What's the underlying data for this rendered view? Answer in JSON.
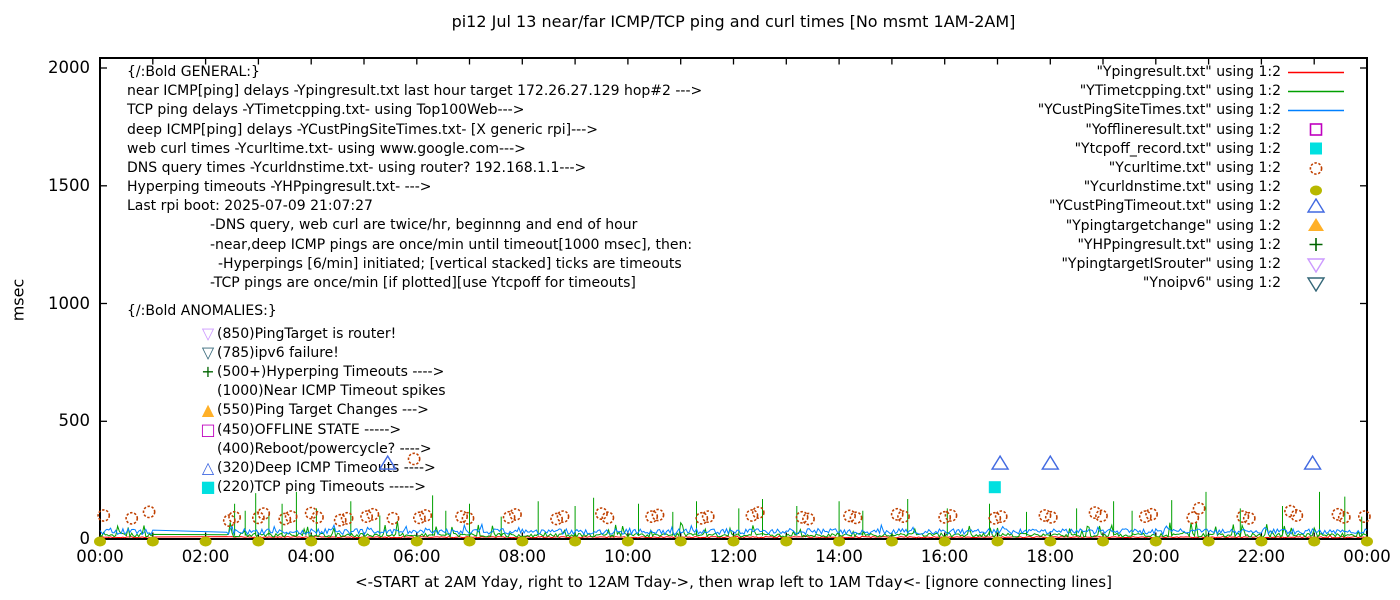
{
  "title": "pi12 Jul 13  near/far ICMP/TCP ping and curl times [No msmt 1AM-2AM]",
  "axes": {
    "ylabel": "msec",
    "xlabel": "<-START at 2AM Yday, right to 12AM Tday->, then wrap left to 1AM Tday<- [ignore connecting lines]",
    "y_tick_labels": [
      "0",
      "500",
      "1000",
      "1500",
      "2000"
    ],
    "x_tick_labels": [
      "00:00",
      "02:00",
      "04:00",
      "06:00",
      "08:00",
      "10:00",
      "12:00",
      "14:00",
      "16:00",
      "18:00",
      "20:00",
      "22:00",
      "00:00"
    ]
  },
  "general_block": {
    "lines": [
      {
        "text": "{/:Bold GENERAL:}",
        "indent": 0
      },
      {
        "text": "near ICMP[ping] delays -Ypingresult.txt last hour target 172.26.27.129 hop#2 --->",
        "indent": 0
      },
      {
        "text": "TCP ping delays -YTimetcpping.txt- using Top100Web--->",
        "indent": 0
      },
      {
        "text": "deep ICMP[ping] delays -YCustPingSiteTimes.txt- [X generic rpi]--->",
        "indent": 0
      },
      {
        "text": "web curl times -Ycurltime.txt- using www.google.com--->",
        "indent": 0
      },
      {
        "text": "DNS query times -Ycurldnstime.txt- using router? 192.168.1.1--->",
        "indent": 0
      },
      {
        "text": "Hyperping timeouts -YHPpingresult.txt- --->",
        "indent": 0
      },
      {
        "text": "Last rpi boot: 2025-07-09 21:07:27",
        "indent": 0
      },
      {
        "text": "-DNS query, web curl are twice/hr, beginnng and end of hour",
        "indent": 1
      },
      {
        "text": "-near,deep ICMP pings are once/min until timeout[1000 msec], then:",
        "indent": 1
      },
      {
        "text": "-Hyperpings [6/min] initiated; [vertical stacked] ticks are timeouts",
        "indent": 2
      },
      {
        "text": "-TCP pings are once/min [if plotted][use Ytcpoff for timeouts]",
        "indent": 1
      }
    ]
  },
  "anomalies_block": {
    "header": "{/:Bold ANOMALIES:}",
    "items": [
      {
        "marker": "triangle-down-open",
        "color": "#cc99ff",
        "text": "(850)PingTarget is router!"
      },
      {
        "marker": "triangle-down-open",
        "color": "#336677",
        "text": "(785)ipv6 failure!"
      },
      {
        "marker": "plus",
        "color": "#006400",
        "text": "(500+)Hyperping Timeouts ---->"
      },
      {
        "marker": "none",
        "color": "#000000",
        "text": "(1000)Near ICMP Timeout spikes"
      },
      {
        "marker": "triangle-up-filled",
        "color": "#ffb028",
        "text": "(550)Ping Target Changes --->"
      },
      {
        "marker": "square-open",
        "color": "#bf00bf",
        "text": "(450)OFFLINE STATE ----->"
      },
      {
        "marker": "none",
        "color": "#000000",
        "text": "(400)Reboot/powercycle? ---->"
      },
      {
        "marker": "triangle-up-open",
        "color": "#4169e1",
        "text": "(320)Deep ICMP Timeouts ---->"
      },
      {
        "marker": "square-filled",
        "color": "#00e0e0",
        "text": "(220)TCP ping Timeouts ----->"
      }
    ]
  },
  "legend": [
    {
      "label": "\"Ypingresult.txt\" using 1:2",
      "marker": "line",
      "color": "#ff0000"
    },
    {
      "label": "\"YTimetcpping.txt\" using 1:2",
      "marker": "line",
      "color": "#00a000"
    },
    {
      "label": "\"YCustPingSiteTimes.txt\" using 1:2",
      "marker": "line",
      "color": "#0080ff"
    },
    {
      "label": "\"Yofflineresult.txt\" using 1:2",
      "marker": "square-open",
      "color": "#bf00bf"
    },
    {
      "label": "\"Ytcpoff_record.txt\" using 1:2",
      "marker": "square-filled",
      "color": "#00e0e0"
    },
    {
      "label": "\"Ycurltime.txt\" using 1:2",
      "marker": "circle-open",
      "color": "#c04000"
    },
    {
      "label": "\"Ycurldnstime.txt\" using 1:2",
      "marker": "circle-filled",
      "color": "#b8b800"
    },
    {
      "label": "\"YCustPingTimeout.txt\" using 1:2",
      "marker": "triangle-up-open",
      "color": "#4169e1"
    },
    {
      "label": "\"Ypingtargetchange\" using 1:2",
      "marker": "triangle-up-filled",
      "color": "#ffb028"
    },
    {
      "label": "\"YHPpingresult.txt\" using 1:2",
      "marker": "plus",
      "color": "#006400"
    },
    {
      "label": "\"YpingtargetISrouter\" using 1:2",
      "marker": "triangle-down-open",
      "color": "#cc99ff"
    },
    {
      "label": "\"Ynoipv6\" using 1:2",
      "marker": "triangle-down-open",
      "color": "#336677"
    }
  ],
  "chart_data": {
    "type": "line",
    "title": "pi12 Jul 13  near/far ICMP/TCP ping and curl times [No msmt 1AM-2AM]",
    "xlabel": "<-START at 2AM Yday, right to 12AM Tday->, then wrap left to 1AM Tday<- [ignore connecting lines]",
    "ylabel": "msec",
    "xlim_hours": [
      0,
      24
    ],
    "ylim": [
      0,
      2000
    ],
    "y_ticks": [
      0,
      500,
      1000,
      1500,
      2000
    ],
    "x_tick_hours": [
      0,
      2,
      4,
      6,
      8,
      10,
      12,
      14,
      16,
      18,
      20,
      22,
      24
    ],
    "grid": false,
    "legend_position": "top-right",
    "no_measurement_gap_hours": [
      1.0,
      2.4
    ],
    "line_series": [
      {
        "name": "Ypingresult.txt",
        "color": "#ff0000",
        "base": 7,
        "noise": 5,
        "burst_p": 0.02,
        "burst_amp": 8,
        "seed": 7,
        "spikes": []
      },
      {
        "name": "YTimetcpping.txt",
        "color": "#00a000",
        "base": 14,
        "noise": 16,
        "burst_p": 0.12,
        "burst_amp": 55,
        "seed": 13,
        "spikes": [
          [
            2.55,
            150
          ],
          [
            2.75,
            120
          ],
          [
            2.95,
            195
          ],
          [
            3.2,
            110
          ],
          [
            3.45,
            150
          ],
          [
            3.72,
            200
          ],
          [
            4.1,
            130
          ],
          [
            4.75,
            160
          ],
          [
            5.3,
            100
          ],
          [
            6.3,
            185
          ],
          [
            6.55,
            120
          ],
          [
            7.0,
            150
          ],
          [
            7.6,
            95
          ],
          [
            8.3,
            160
          ],
          [
            9.0,
            140
          ],
          [
            9.35,
            175
          ],
          [
            10.2,
            150
          ],
          [
            10.85,
            115
          ],
          [
            11.3,
            160
          ],
          [
            12.1,
            130
          ],
          [
            12.55,
            170
          ],
          [
            13.2,
            140
          ],
          [
            14.0,
            160
          ],
          [
            14.45,
            120
          ],
          [
            15.3,
            170
          ],
          [
            16.05,
            130
          ],
          [
            16.85,
            150
          ],
          [
            17.55,
            115
          ],
          [
            18.5,
            130
          ],
          [
            19.2,
            160
          ],
          [
            19.55,
            120
          ],
          [
            20.3,
            165
          ],
          [
            20.95,
            200
          ],
          [
            21.6,
            130
          ],
          [
            22.4,
            140
          ],
          [
            23.1,
            200
          ],
          [
            23.58,
            180
          ],
          [
            23.9,
            95
          ]
        ]
      },
      {
        "name": "YCustPingSiteTimes.txt",
        "color": "#0080ff",
        "base": 28,
        "noise": 24,
        "burst_p": 0.08,
        "burst_amp": 22,
        "seed": 5,
        "spikes": []
      }
    ],
    "point_series": [
      {
        "name": "Yofflineresult.txt",
        "marker": "square-open",
        "color": "#bf00bf",
        "points": []
      },
      {
        "name": "Ytcpoff_record.txt",
        "marker": "square-filled",
        "color": "#00e0e0",
        "points": [
          [
            16.95,
            220
          ]
        ]
      },
      {
        "name": "Ycurltime.txt",
        "marker": "circle-open",
        "color": "#c04000",
        "points": [
          [
            0.07,
            100
          ],
          [
            0.6,
            88
          ],
          [
            0.93,
            115
          ],
          [
            2.45,
            78
          ],
          [
            2.55,
            92
          ],
          [
            3.0,
            90
          ],
          [
            3.1,
            108
          ],
          [
            3.5,
            85
          ],
          [
            3.62,
            95
          ],
          [
            4.0,
            110
          ],
          [
            4.12,
            92
          ],
          [
            4.55,
            80
          ],
          [
            4.68,
            88
          ],
          [
            5.05,
            95
          ],
          [
            5.17,
            105
          ],
          [
            5.55,
            88
          ],
          [
            5.95,
            340
          ],
          [
            6.05,
            90
          ],
          [
            6.17,
            100
          ],
          [
            6.85,
            95
          ],
          [
            6.97,
            88
          ],
          [
            7.75,
            92
          ],
          [
            7.87,
            104
          ],
          [
            8.65,
            85
          ],
          [
            8.77,
            95
          ],
          [
            9.5,
            108
          ],
          [
            9.62,
            90
          ],
          [
            10.45,
            95
          ],
          [
            10.57,
            102
          ],
          [
            11.4,
            88
          ],
          [
            11.52,
            95
          ],
          [
            12.35,
            100
          ],
          [
            12.47,
            112
          ],
          [
            13.3,
            92
          ],
          [
            13.42,
            85
          ],
          [
            14.2,
            98
          ],
          [
            14.32,
            90
          ],
          [
            15.1,
            105
          ],
          [
            15.22,
            95
          ],
          [
            16.0,
            92
          ],
          [
            16.12,
            100
          ],
          [
            16.95,
            88
          ],
          [
            17.07,
            95
          ],
          [
            17.9,
            100
          ],
          [
            18.02,
            92
          ],
          [
            18.85,
            112
          ],
          [
            18.97,
            98
          ],
          [
            19.8,
            95
          ],
          [
            19.92,
            105
          ],
          [
            20.7,
            90
          ],
          [
            20.82,
            130
          ],
          [
            21.65,
            95
          ],
          [
            21.77,
            88
          ],
          [
            22.55,
            118
          ],
          [
            22.67,
            100
          ],
          [
            23.45,
            105
          ],
          [
            23.57,
            92
          ],
          [
            23.95,
            95
          ]
        ]
      },
      {
        "name": "Ycurldnstime.txt",
        "marker": "circle-filled",
        "color": "#b8b800",
        "points": [
          [
            0,
            2
          ],
          [
            1,
            2
          ],
          [
            2,
            2
          ],
          [
            3,
            2
          ],
          [
            4,
            2
          ],
          [
            5,
            2
          ],
          [
            6,
            2
          ],
          [
            7,
            2
          ],
          [
            8,
            2
          ],
          [
            9,
            2
          ],
          [
            10,
            2
          ],
          [
            11,
            2
          ],
          [
            12,
            2
          ],
          [
            13,
            2
          ],
          [
            14,
            2
          ],
          [
            15,
            2
          ],
          [
            16,
            2
          ],
          [
            17,
            2
          ],
          [
            18,
            2
          ],
          [
            19,
            2
          ],
          [
            20,
            2
          ],
          [
            21,
            2
          ],
          [
            22,
            2
          ],
          [
            23,
            2
          ],
          [
            24,
            2
          ]
        ]
      },
      {
        "name": "YCustPingTimeout.txt",
        "marker": "triangle-up-open",
        "color": "#4169e1",
        "points": [
          [
            5.45,
            320
          ],
          [
            17.05,
            320
          ],
          [
            18.0,
            320
          ],
          [
            22.97,
            320
          ]
        ]
      },
      {
        "name": "Ypingtargetchange",
        "marker": "triangle-up-filled",
        "color": "#ffb028",
        "points": []
      },
      {
        "name": "YHPpingresult.txt",
        "marker": "plus",
        "color": "#006400",
        "points": []
      },
      {
        "name": "YpingtargetISrouter",
        "marker": "triangle-down-open",
        "color": "#cc99ff",
        "points": []
      },
      {
        "name": "Ynoipv6",
        "marker": "triangle-down-open",
        "color": "#336677",
        "points": []
      }
    ]
  }
}
